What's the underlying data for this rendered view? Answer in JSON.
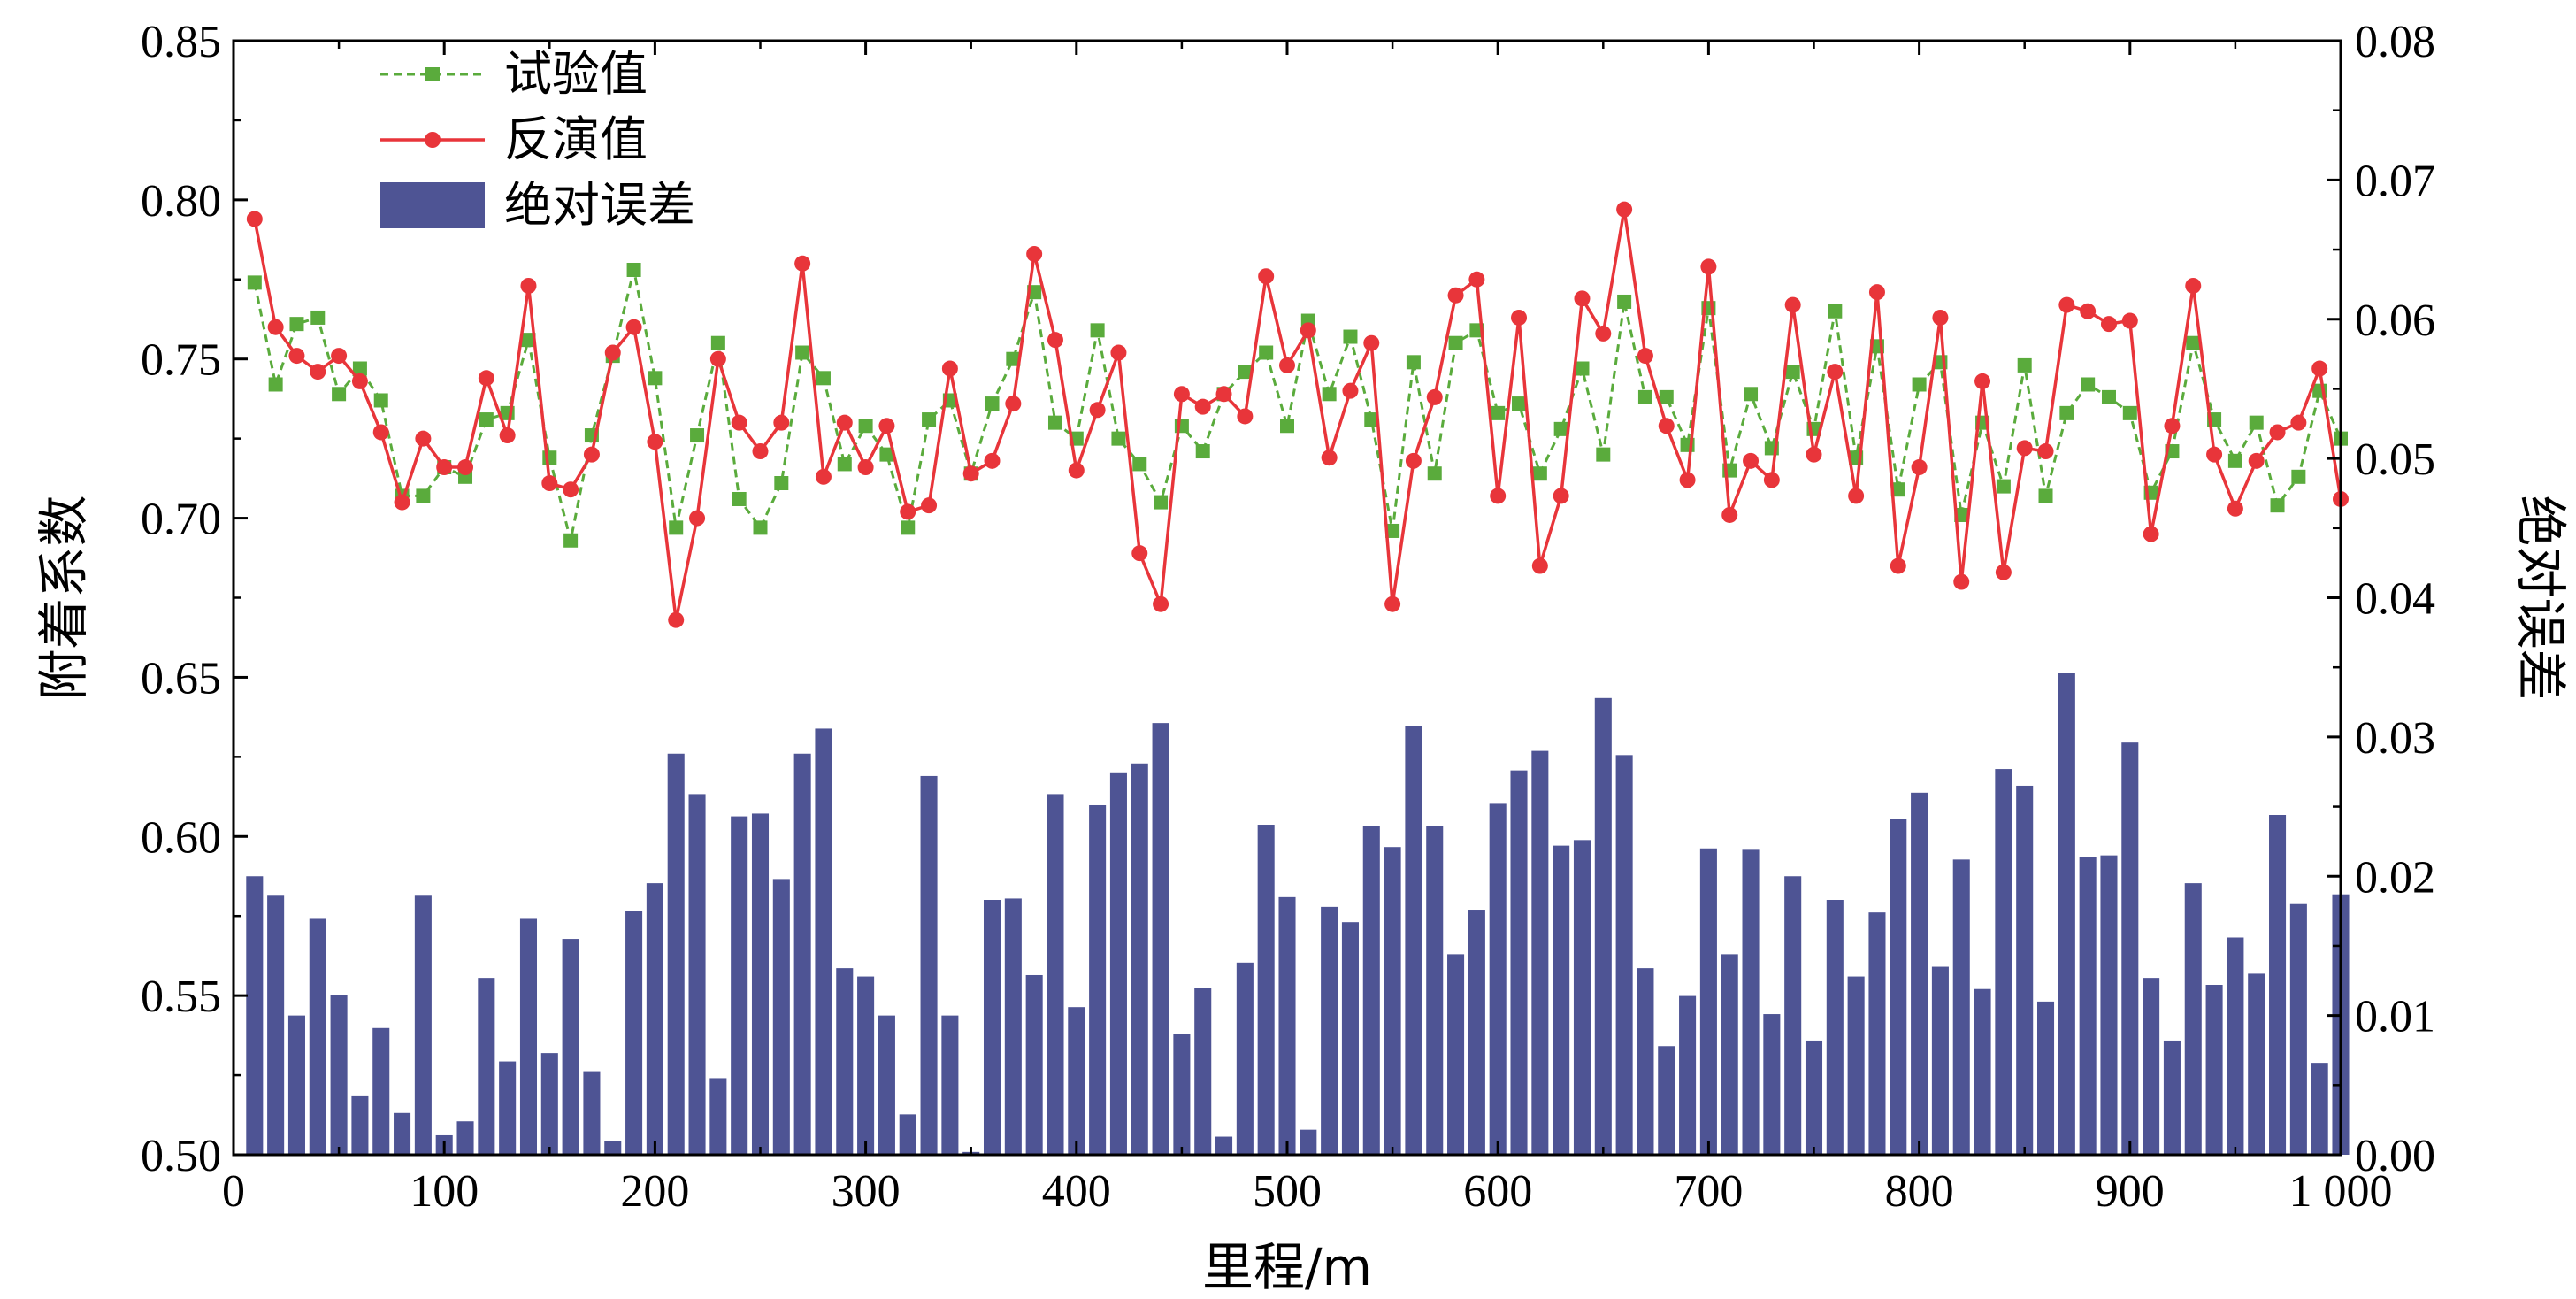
{
  "chart_data": {
    "type": "bar+line",
    "xlabel": "里程/m",
    "ylabel_left": "附着系数",
    "ylabel_right": "绝对误差",
    "xlim": [
      0,
      1000
    ],
    "ylim_left": [
      0.5,
      0.85
    ],
    "ylim_right": [
      0.0,
      0.08
    ],
    "x_ticks": [
      0,
      100,
      200,
      300,
      400,
      500,
      600,
      700,
      800,
      900,
      1000
    ],
    "x_tick_labels": [
      "0",
      "100",
      "200",
      "300",
      "400",
      "500",
      "600",
      "700",
      "800",
      "900",
      "1 000"
    ],
    "y_left_ticks": [
      0.5,
      0.55,
      0.6,
      0.65,
      0.7,
      0.75,
      0.8,
      0.85
    ],
    "y_left_tick_labels": [
      "0.50",
      "0.55",
      "0.60",
      "0.65",
      "0.70",
      "0.75",
      "0.80",
      "0.85"
    ],
    "y_right_ticks": [
      0.0,
      0.01,
      0.02,
      0.03,
      0.04,
      0.05,
      0.06,
      0.07,
      0.08
    ],
    "y_right_tick_labels": [
      "0.00",
      "0.01",
      "0.02",
      "0.03",
      "0.04",
      "0.05",
      "0.06",
      "0.07",
      "0.08"
    ],
    "legend_position": "top-left",
    "x": [
      10,
      20,
      30,
      40,
      50,
      60,
      70,
      80,
      90,
      100,
      110,
      120,
      130,
      140,
      150,
      160,
      170,
      180,
      190,
      200,
      210,
      220,
      230,
      240,
      250,
      260,
      270,
      280,
      290,
      300,
      310,
      320,
      330,
      340,
      350,
      360,
      370,
      380,
      390,
      400,
      410,
      420,
      430,
      440,
      450,
      460,
      470,
      480,
      490,
      500,
      510,
      520,
      530,
      540,
      550,
      560,
      570,
      580,
      590,
      600,
      610,
      620,
      630,
      640,
      650,
      660,
      670,
      680,
      690,
      700,
      710,
      720,
      730,
      740,
      750,
      760,
      770,
      780,
      790,
      800,
      810,
      820,
      830,
      840,
      850,
      860,
      870,
      880,
      890,
      900,
      910,
      920,
      930,
      940,
      950,
      960,
      970,
      980,
      990,
      1000
    ],
    "series": [
      {
        "name": "试验值",
        "type": "line",
        "axis": "left",
        "color": "#5aab3c",
        "style": "dashed",
        "marker": "square",
        "values": [
          0.774,
          0.742,
          0.761,
          0.763,
          0.739,
          0.747,
          0.737,
          0.707,
          0.707,
          0.716,
          0.713,
          0.731,
          0.733,
          0.756,
          0.719,
          0.693,
          0.726,
          0.751,
          0.778,
          0.744,
          0.697,
          0.726,
          0.755,
          0.706,
          0.697,
          0.711,
          0.752,
          0.744,
          0.717,
          0.729,
          0.72,
          0.697,
          0.731,
          0.737,
          0.714,
          0.736,
          0.75,
          0.771,
          0.73,
          0.725,
          0.759,
          0.725,
          0.717,
          0.705,
          0.729,
          0.721,
          0.739,
          0.746,
          0.752,
          0.729,
          0.762,
          0.739,
          0.757,
          0.731,
          0.696,
          0.749,
          0.714,
          0.755,
          0.759,
          0.733,
          0.736,
          0.714,
          0.728,
          0.747,
          0.72,
          0.768,
          0.738,
          0.738,
          0.723,
          0.766,
          0.715,
          0.739,
          0.722,
          0.746,
          0.728,
          0.765,
          0.719,
          0.754,
          0.709,
          0.742,
          0.749,
          0.701,
          0.73,
          0.71,
          0.748,
          0.707,
          0.733,
          0.742,
          0.738,
          0.733,
          0.708,
          0.721,
          0.755,
          0.731,
          0.718,
          0.73,
          0.704,
          0.713,
          0.74,
          0.725
        ]
      },
      {
        "name": "反演值",
        "type": "line",
        "axis": "left",
        "color": "#e8353a",
        "style": "solid",
        "marker": "circle",
        "values": [
          0.794,
          0.76,
          0.751,
          0.746,
          0.751,
          0.743,
          0.727,
          0.705,
          0.725,
          0.716,
          0.716,
          0.744,
          0.726,
          0.773,
          0.711,
          0.709,
          0.72,
          0.752,
          0.76,
          0.724,
          0.668,
          0.7,
          0.75,
          0.73,
          0.721,
          0.73,
          0.78,
          0.713,
          0.73,
          0.716,
          0.729,
          0.702,
          0.704,
          0.747,
          0.714,
          0.718,
          0.736,
          0.783,
          0.756,
          0.715,
          0.734,
          0.752,
          0.689,
          0.673,
          0.739,
          0.735,
          0.739,
          0.732,
          0.776,
          0.748,
          0.759,
          0.719,
          0.74,
          0.755,
          0.673,
          0.718,
          0.738,
          0.77,
          0.775,
          0.707,
          0.763,
          0.685,
          0.707,
          0.769,
          0.758,
          0.797,
          0.751,
          0.729,
          0.712,
          0.779,
          0.701,
          0.718,
          0.712,
          0.767,
          0.72,
          0.746,
          0.707,
          0.771,
          0.685,
          0.716,
          0.763,
          0.68,
          0.743,
          0.683,
          0.722,
          0.721,
          0.767,
          0.765,
          0.761,
          0.762,
          0.695,
          0.729,
          0.773,
          0.72,
          0.703,
          0.718,
          0.727,
          0.73,
          0.747,
          0.706
        ]
      },
      {
        "name": "绝对误差",
        "type": "bar",
        "axis": "right",
        "color": "#4e5494",
        "values": [
          0.02,
          0.0186,
          0.01,
          0.017,
          0.0115,
          0.0042,
          0.0091,
          0.003,
          0.0186,
          0.0014,
          0.0024,
          0.0127,
          0.0067,
          0.017,
          0.0073,
          0.0155,
          0.006,
          0.001,
          0.0175,
          0.0195,
          0.0288,
          0.0259,
          0.0055,
          0.0243,
          0.0245,
          0.0198,
          0.0288,
          0.0306,
          0.0134,
          0.0128,
          0.01,
          0.0029,
          0.0272,
          0.01,
          0.0002,
          0.0183,
          0.0184,
          0.0129,
          0.0259,
          0.0106,
          0.0251,
          0.0274,
          0.0281,
          0.031,
          0.0087,
          0.012,
          0.0013,
          0.0138,
          0.0237,
          0.0185,
          0.0018,
          0.0178,
          0.0167,
          0.0236,
          0.0221,
          0.0308,
          0.0236,
          0.0144,
          0.0176,
          0.0252,
          0.0276,
          0.029,
          0.0222,
          0.0226,
          0.0328,
          0.0287,
          0.0134,
          0.0078,
          0.0114,
          0.022,
          0.0144,
          0.0219,
          0.0101,
          0.02,
          0.0082,
          0.0183,
          0.0128,
          0.0174,
          0.0241,
          0.026,
          0.0135,
          0.0212,
          0.0119,
          0.0277,
          0.0265,
          0.011,
          0.0346,
          0.0214,
          0.0215,
          0.0296,
          0.0127,
          0.0082,
          0.0195,
          0.0122,
          0.0156,
          0.013,
          0.0244,
          0.018,
          0.0066,
          0.0187
        ]
      }
    ]
  }
}
